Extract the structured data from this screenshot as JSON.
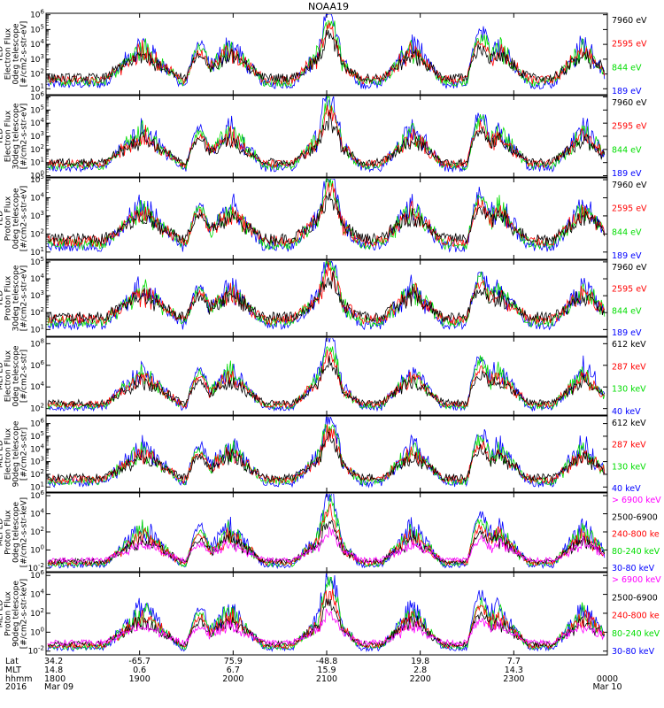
{
  "title": "NOAA19",
  "colors": {
    "blue": "#0000ff",
    "red": "#ff0000",
    "green": "#00dd00",
    "black": "#000000",
    "magenta": "#ff00ff"
  },
  "chart_data": [
    {
      "type": "line",
      "panel": 1,
      "ylabel": [
        "TED",
        "Electron Flux",
        "0deg telescope",
        "[#/cm2-s-str-eV]"
      ],
      "yticks": [
        "10^1",
        "10^2",
        "10^3",
        "10^4",
        "10^5",
        "10^6"
      ],
      "ylim_exp": [
        0.6,
        6.1
      ],
      "legend": [
        {
          "name": "7960 eV",
          "color": "#000000"
        },
        {
          "name": "2595 eV",
          "color": "#ff0000"
        },
        {
          "name": "844 eV",
          "color": "#00dd00"
        },
        {
          "name": "189 eV",
          "color": "#0000ff"
        }
      ]
    },
    {
      "type": "line",
      "panel": 2,
      "ylabel": [
        "TED",
        "Electron Flux",
        "30deg telescope",
        "[#/cm2-s-str-eV]"
      ],
      "yticks": [
        "10^0",
        "10^1",
        "10^2",
        "10^3",
        "10^4",
        "10^5",
        "10^6"
      ],
      "ylim_exp": [
        -0.1,
        6.1
      ],
      "legend": [
        {
          "name": "7960 eV",
          "color": "#000000"
        },
        {
          "name": "2595 eV",
          "color": "#ff0000"
        },
        {
          "name": "844 eV",
          "color": "#00dd00"
        },
        {
          "name": "189 eV",
          "color": "#0000ff"
        }
      ]
    },
    {
      "type": "line",
      "panel": 3,
      "ylabel": [
        "TED",
        "Proton Flux",
        "0deg telescope",
        "[#/cm2-s-str-eV]"
      ],
      "yticks": [
        "10^1",
        "10^2",
        "10^3",
        "10^4",
        "10^5"
      ],
      "ylim_exp": [
        0.6,
        5.1
      ],
      "legend": [
        {
          "name": "7960 eV",
          "color": "#000000"
        },
        {
          "name": "2595 eV",
          "color": "#ff0000"
        },
        {
          "name": "844 eV",
          "color": "#00dd00"
        },
        {
          "name": "189 eV",
          "color": "#0000ff"
        }
      ]
    },
    {
      "type": "line",
      "panel": 4,
      "ylabel": [
        "TED",
        "Proton Flux",
        "30deg telescope",
        "[#/cm2-s-str-eV]"
      ],
      "yticks": [
        "10^1",
        "10^2",
        "10^3",
        "10^4",
        "10^5"
      ],
      "ylim_exp": [
        0.6,
        5.1
      ],
      "legend": [
        {
          "name": "7960 eV",
          "color": "#000000"
        },
        {
          "name": "2595 eV",
          "color": "#ff0000"
        },
        {
          "name": "844 eV",
          "color": "#00dd00"
        },
        {
          "name": "189 eV",
          "color": "#0000ff"
        }
      ]
    },
    {
      "type": "line",
      "panel": 5,
      "ylabel": [
        "MEPED",
        "Electron Flux",
        "0deg telescope",
        "[#/cm2-s-str]"
      ],
      "yticks": [
        "10^2",
        "10^4",
        "10^6",
        "10^8"
      ],
      "ylim_exp": [
        1.4,
        8.6
      ],
      "legend": [
        {
          "name": "612 keV",
          "color": "#000000"
        },
        {
          "name": "287 keV",
          "color": "#ff0000"
        },
        {
          "name": "130 keV",
          "color": "#00dd00"
        },
        {
          "name": "40 keV",
          "color": "#0000ff"
        }
      ]
    },
    {
      "type": "line",
      "panel": 6,
      "ylabel": [
        "MEPED",
        "Electron Flux",
        "90deg telescope",
        "[#/cm2-s-str]"
      ],
      "yticks": [
        "10^1",
        "10^2",
        "10^3",
        "10^4",
        "10^5",
        "10^6"
      ],
      "ylim_exp": [
        0.6,
        6.6
      ],
      "legend": [
        {
          "name": "612 keV",
          "color": "#000000"
        },
        {
          "name": "287 keV",
          "color": "#ff0000"
        },
        {
          "name": "130 keV",
          "color": "#00dd00"
        },
        {
          "name": "40 keV",
          "color": "#0000ff"
        }
      ]
    },
    {
      "type": "line",
      "panel": 7,
      "ylabel": [
        "MEPED",
        "Proton Flux",
        "0deg telescope",
        "[#/cm2-s-str-keV]"
      ],
      "yticks": [
        "10^-2",
        "10^0",
        "10^2",
        "10^4",
        "10^6"
      ],
      "ylim_exp": [
        -2.4,
        6.3
      ],
      "legend": [
        {
          "name": "> 6900 keV",
          "color": "#ff00ff"
        },
        {
          "name": "2500-6900",
          "color": "#000000"
        },
        {
          "name": "240-800 ke",
          "color": "#ff0000"
        },
        {
          "name": "80-240 keV",
          "color": "#00dd00"
        },
        {
          "name": "30-80 keV",
          "color": "#0000ff"
        }
      ]
    },
    {
      "type": "line",
      "panel": 8,
      "ylabel": [
        "MEPED",
        "Proton Flux",
        "90deg telescope",
        "[#/cm2-s-str-keV]"
      ],
      "yticks": [
        "10^-2",
        "10^0",
        "10^2",
        "10^4",
        "10^6"
      ],
      "ylim_exp": [
        -2.4,
        6.3
      ],
      "legend": [
        {
          "name": "> 6900 keV",
          "color": "#ff00ff"
        },
        {
          "name": "2500-6900",
          "color": "#000000"
        },
        {
          "name": "240-800 ke",
          "color": "#ff0000"
        },
        {
          "name": "80-240 keV",
          "color": "#00dd00"
        },
        {
          "name": "30-80 keV",
          "color": "#0000ff"
        }
      ]
    }
  ],
  "xaxis": {
    "row_labels": [
      "Lat",
      "MLT",
      "hhmm",
      "2016"
    ],
    "columns": [
      {
        "time_min": 0,
        "lat": "34.2",
        "mlt": "14.8",
        "hhmm": "1800",
        "date": "Mar 09"
      },
      {
        "time_min": 60,
        "lat": "-65.7",
        "mlt": "0.6",
        "hhmm": "1900",
        "date": ""
      },
      {
        "time_min": 120,
        "lat": "75.9",
        "mlt": "6.7",
        "hhmm": "2000",
        "date": ""
      },
      {
        "time_min": 180,
        "lat": "-48.8",
        "mlt": "15.9",
        "hhmm": "2100",
        "date": ""
      },
      {
        "time_min": 240,
        "lat": "19.8",
        "mlt": "2.8",
        "hhmm": "2200",
        "date": ""
      },
      {
        "time_min": 300,
        "lat": "7.7",
        "mlt": "14.3",
        "hhmm": "2300",
        "date": ""
      },
      {
        "time_min": 360,
        "lat": "",
        "mlt": "",
        "hhmm": "0000",
        "date": "Mar 10"
      }
    ]
  }
}
